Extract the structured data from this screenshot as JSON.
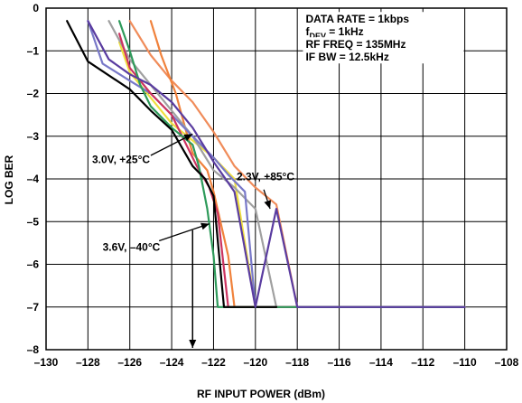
{
  "chart_data": {
    "type": "line",
    "title": "",
    "xlabel": "RF INPUT POWER (dBm)",
    "ylabel": "LOG BER",
    "xlim": [
      -130,
      -108
    ],
    "ylim": [
      -8,
      0
    ],
    "x_ticks": [
      -130,
      -128,
      -126,
      -124,
      -122,
      -120,
      -118,
      -116,
      -114,
      -112,
      -110,
      -108
    ],
    "y_ticks": [
      0,
      -1,
      -2,
      -3,
      -4,
      -5,
      -6,
      -7,
      -8
    ],
    "grid": true,
    "info_lines": [
      {
        "main": "DATA RATE = 1kbps",
        "sub": "",
        "tail": ""
      },
      {
        "main": "f",
        "sub": "DEV",
        "tail": " = 1kHz"
      },
      {
        "main": "RF FREQ = 135MHz",
        "sub": "",
        "tail": ""
      },
      {
        "main": "IF BW = 12.5kHz",
        "sub": "",
        "tail": ""
      }
    ],
    "annotations": [
      {
        "text": "3.0V, +25°C",
        "tx": -127.8,
        "ty": -3.55,
        "ax1": -125.0,
        "ay1": -3.45,
        "ax2": -123.0,
        "ay2": -2.95
      },
      {
        "text": "2.3V, +85°C",
        "tx": -120.9,
        "ty": -3.95,
        "ax1": -119.6,
        "ay1": -4.25,
        "ax2": -119.3,
        "ay2": -4.7
      },
      {
        "text": "3.6V, –40°C",
        "tx": -127.3,
        "ty": -5.6,
        "ax1": -124.6,
        "ay1": -5.45,
        "ax2": -122.2,
        "ay2": -5.05
      }
    ],
    "arrow": {
      "x": -123,
      "y_from": -5.2,
      "y_to": -8
    },
    "series": [
      {
        "color": "#f08c5a",
        "x": [
          -126,
          -125,
          -124,
          -123,
          -122,
          -121,
          -120,
          -119,
          -118,
          -110
        ],
        "y": [
          -0.3,
          -1.1,
          -1.7,
          -2.2,
          -2.9,
          -3.7,
          -4.2,
          -4.6,
          -7.0,
          -7.0
        ]
      },
      {
        "color": "#f0823c",
        "x": [
          -125,
          -124.5,
          -123.8,
          -123.3,
          -123,
          -122.3,
          -122,
          -121.3,
          -121,
          -120.3,
          -118,
          -110
        ],
        "y": [
          -0.3,
          -1.1,
          -2.0,
          -2.9,
          -3.4,
          -3.8,
          -4.3,
          -5.8,
          -7.0,
          -7.0,
          -7.0,
          -7.0
        ]
      },
      {
        "color": "#f0e040",
        "x": [
          -126.5,
          -126,
          -125,
          -124,
          -123,
          -122,
          -121,
          -120.5,
          -120,
          -118,
          -110
        ],
        "y": [
          -0.8,
          -1.5,
          -2.1,
          -2.7,
          -3.1,
          -3.5,
          -4.0,
          -5.5,
          -7.0,
          -7.0,
          -7.0
        ]
      },
      {
        "color": "#a0a0a0",
        "x": [
          -127,
          -126,
          -125,
          -124,
          -123,
          -122,
          -121,
          -120,
          -119,
          -118,
          -110
        ],
        "y": [
          -0.3,
          -1.2,
          -1.8,
          -2.4,
          -3.0,
          -3.8,
          -4.2,
          -4.7,
          -7.0,
          -7.0,
          -7.0
        ]
      },
      {
        "color": "#7878c8",
        "x": [
          -128,
          -127.3,
          -126,
          -125,
          -124,
          -123,
          -122,
          -121.3,
          -120.5,
          -120,
          -118,
          -110
        ],
        "y": [
          -0.3,
          -1.3,
          -1.7,
          -2.0,
          -2.5,
          -3.0,
          -3.5,
          -3.9,
          -4.3,
          -7.0,
          -7.0,
          -7.0
        ]
      },
      {
        "color": "#cc3360",
        "x": [
          -126.5,
          -126,
          -125,
          -124,
          -123.3,
          -122.8,
          -122.2,
          -121.8,
          -121.3,
          -120,
          -118,
          -110
        ],
        "y": [
          -0.6,
          -1.4,
          -2.0,
          -2.5,
          -3.2,
          -3.7,
          -4.2,
          -4.8,
          -7.0,
          -7.0,
          -7.0,
          -7.0
        ]
      },
      {
        "color": "#2e9a5a",
        "x": [
          -126.5,
          -126,
          -125.5,
          -125,
          -124,
          -123,
          -122.7,
          -122.3,
          -122,
          -121.8,
          -118,
          -110
        ],
        "y": [
          -0.3,
          -1.0,
          -1.8,
          -2.3,
          -2.8,
          -3.2,
          -3.7,
          -4.7,
          -5.8,
          -7.0,
          -7.0,
          -7.0
        ]
      },
      {
        "color": "#000000",
        "x": [
          -129,
          -128,
          -126,
          -125,
          -124,
          -123,
          -122.4,
          -122.0,
          -121.5,
          -121,
          -120,
          -119
        ],
        "y": [
          -0.3,
          -1.25,
          -1.9,
          -2.4,
          -2.85,
          -3.7,
          -4.0,
          -4.4,
          -7.0,
          -7.0,
          -7.0,
          -7.0
        ]
      },
      {
        "color": "#5a3ca0",
        "x": [
          -128,
          -127,
          -126,
          -125,
          -124,
          -123,
          -122,
          -121,
          -120,
          -119,
          -118,
          -110
        ],
        "y": [
          -0.3,
          -1.2,
          -1.55,
          -1.8,
          -2.2,
          -2.8,
          -3.6,
          -4.3,
          -7.0,
          -4.7,
          -7.0,
          -7.0
        ]
      }
    ]
  }
}
